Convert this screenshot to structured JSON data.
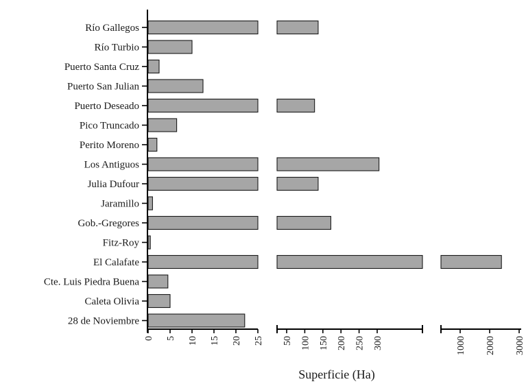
{
  "chart_data": {
    "type": "bar",
    "orientation": "horizontal",
    "categories": [
      "Río Gallegos",
      "Río Turbio",
      "Puerto Santa Cruz",
      "Puerto San Julian",
      "Puerto Deseado",
      "Pico Truncado",
      "Perito Moreno",
      "Los Antiguos",
      "Julia Dufour",
      "Jaramillo",
      "Gob.-Gregores",
      "Fitz-Roy",
      "El Calafate",
      "Cte. Luis Piedra Buena",
      "Caleta Olivia",
      "28 de Noviembre"
    ],
    "values": [
      137,
      10,
      2.5,
      12.5,
      127,
      6.5,
      2,
      305,
      137,
      1,
      172,
      0.5,
      2400,
      4.5,
      5,
      22
    ],
    "xlabel": "Superficie (Ha)",
    "ylabel": "",
    "broken_axis": {
      "segments": [
        {
          "range": [
            0,
            25
          ],
          "ticks": [
            "0",
            "5",
            "10",
            "15",
            "20",
            "25"
          ]
        },
        {
          "range": [
            25,
            330
          ],
          "ticks": [
            "50",
            "100",
            "150",
            "200",
            "250",
            "300"
          ]
        },
        {
          "range": [
            330,
            3000
          ],
          "ticks": [
            "1000",
            "2000",
            "3000"
          ]
        }
      ]
    },
    "bar_color": "#a6a6a6",
    "grid": false
  }
}
